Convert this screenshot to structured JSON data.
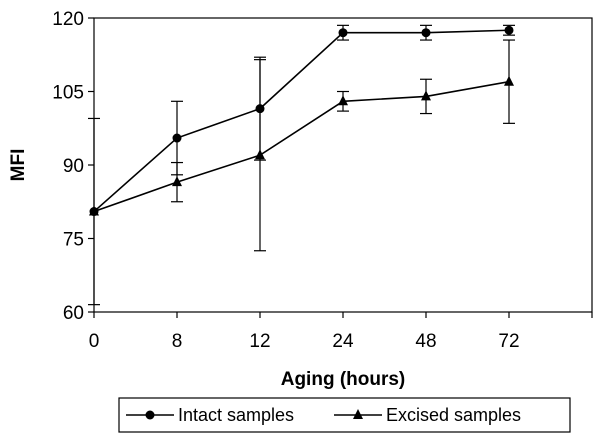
{
  "chart_data": {
    "type": "line",
    "title": "",
    "xlabel": "Aging (hours)",
    "ylabel": "MFI",
    "categories": [
      "0",
      "8",
      "12",
      "24",
      "48",
      "72"
    ],
    "ylim": [
      60,
      120
    ],
    "yticks": [
      60,
      75,
      90,
      105,
      120
    ],
    "grid": false,
    "legend_position": "bottom",
    "series": [
      {
        "name": "Intact samples",
        "marker": "circle",
        "color": "#000000",
        "values": [
          80.5,
          95.5,
          101.5,
          117,
          117,
          117.5
        ],
        "errors": [
          19,
          7.5,
          10.5,
          1.5,
          1.5,
          1
        ]
      },
      {
        "name": "Excised samples",
        "marker": "triangle",
        "color": "#000000",
        "values": [
          80.5,
          86.5,
          92,
          103,
          104,
          107
        ],
        "errors": [
          0,
          4,
          19.5,
          2,
          3.5,
          8.5
        ]
      }
    ]
  }
}
